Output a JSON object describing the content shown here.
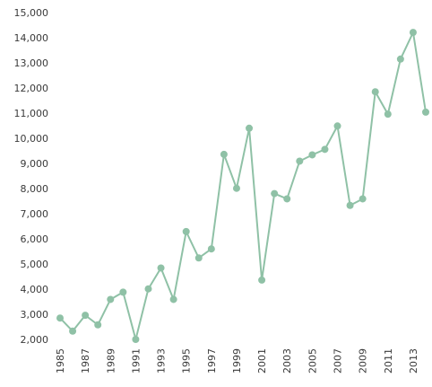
{
  "chart_data": {
    "type": "line",
    "title": "",
    "xlabel": "",
    "ylabel": "",
    "ylim": [
      2000,
      15000
    ],
    "y_ticks": [
      2000,
      3000,
      4000,
      5000,
      6000,
      7000,
      8000,
      9000,
      10000,
      11000,
      12000,
      13000,
      14000,
      15000
    ],
    "y_tick_labels": [
      "2,000",
      "3,000",
      "4,000",
      "5,000",
      "6,000",
      "7,000",
      "8,000",
      "9,000",
      "10,000",
      "11,000",
      "12,000",
      "13,000",
      "14,000",
      "15,000"
    ],
    "x_tick_labels": [
      "1985",
      "1987",
      "1989",
      "1991",
      "1993",
      "1995",
      "1997",
      "1999",
      "2001",
      "2003",
      "2005",
      "2007",
      "2009",
      "2011",
      "2013"
    ],
    "x": [
      1985,
      1986,
      1987,
      1988,
      1989,
      1990,
      1991,
      1992,
      1993,
      1994,
      1995,
      1996,
      1997,
      1998,
      1999,
      2000,
      2001,
      2002,
      2003,
      2004,
      2005,
      2006,
      2007,
      2008,
      2009,
      2010,
      2011,
      2012,
      2013,
      2014
    ],
    "series": [
      {
        "color": "#8fc1a6",
        "values": [
          2850,
          2330,
          2960,
          2580,
          3590,
          3880,
          2000,
          4010,
          4840,
          3590,
          6290,
          5240,
          5600,
          9360,
          8010,
          10400,
          4360,
          7800,
          7590,
          9090,
          9340,
          9560,
          10490,
          7330,
          7590,
          11850,
          10960,
          13150,
          14210,
          11040
        ]
      }
    ],
    "grid": false,
    "legend": "none"
  }
}
